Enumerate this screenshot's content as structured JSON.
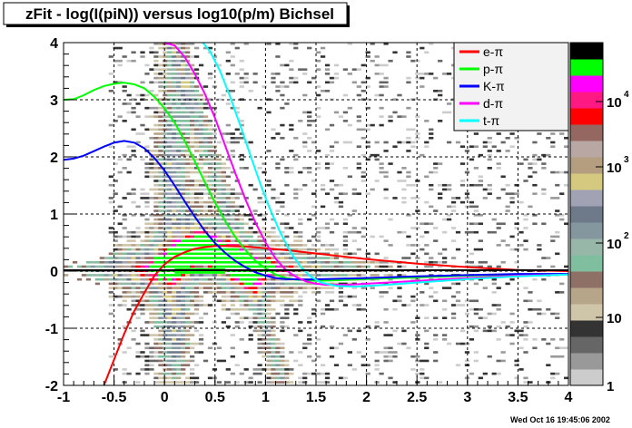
{
  "chart_data": {
    "type": "heatmap",
    "title": "zFit - log(I(piN)) versus log10(p/m) Bichsel",
    "xlim": [
      -1,
      4
    ],
    "ylim": [
      -2,
      4
    ],
    "x_ticks": [
      "-1",
      "-0.5",
      "0",
      "0.5",
      "1",
      "1.5",
      "2",
      "2.5",
      "3",
      "3.5",
      "4"
    ],
    "y_ticks": [
      "-2",
      "-1",
      "0",
      "1",
      "2",
      "3",
      "4"
    ],
    "grid": true,
    "legend_position": "top-right",
    "palette_labels": [
      {
        "base": "1",
        "exp": ""
      },
      {
        "base": "10",
        "exp": ""
      },
      {
        "base": "10",
        "exp": "2"
      },
      {
        "base": "10",
        "exp": "3"
      },
      {
        "base": "10",
        "exp": "4"
      }
    ],
    "palette_colors": [
      "#cccccc",
      "#999999",
      "#666666",
      "#333333",
      "#cfc6aa",
      "#b7a58a",
      "#8f7066",
      "#7fbf9f",
      "#97b8a8",
      "#84969e",
      "#6e7a8a",
      "#a1a3b4",
      "#d4c97f",
      "#b49e7f",
      "#b9a7a4",
      "#946760",
      "#ff0000",
      "#ff1a83",
      "#ff00ff",
      "#00ff00",
      "#000000"
    ],
    "series": [
      {
        "name": "e-π",
        "color": "#ff0000",
        "x": [
          -0.6,
          -0.5,
          -0.4,
          -0.3,
          -0.2,
          -0.1,
          0.0,
          0.1,
          0.2,
          0.3,
          0.4,
          0.5,
          0.6,
          0.8,
          1.0,
          1.2,
          1.5,
          2.0,
          2.5,
          3.0,
          3.5,
          4.0
        ],
        "y": [
          -2.0,
          -1.55,
          -1.1,
          -0.7,
          -0.38,
          -0.08,
          0.12,
          0.25,
          0.33,
          0.39,
          0.42,
          0.44,
          0.44,
          0.43,
          0.4,
          0.37,
          0.31,
          0.21,
          0.13,
          0.07,
          0.02,
          0.0
        ]
      },
      {
        "name": "p-π",
        "color": "#00ff00",
        "x": [
          -1.0,
          -0.9,
          -0.8,
          -0.7,
          -0.6,
          -0.5,
          -0.4,
          -0.3,
          -0.2,
          -0.1,
          0.0,
          0.1,
          0.2,
          0.3,
          0.4,
          0.5,
          0.6,
          0.7,
          0.8,
          0.9,
          1.0,
          1.1,
          1.2,
          1.3,
          1.5,
          1.7,
          2.0,
          2.5,
          3.0,
          3.5,
          4.0
        ],
        "y": [
          3.0,
          3.01,
          3.08,
          3.17,
          3.24,
          3.28,
          3.3,
          3.27,
          3.2,
          3.05,
          2.85,
          2.6,
          2.28,
          1.92,
          1.55,
          1.2,
          0.88,
          0.6,
          0.37,
          0.18,
          0.05,
          -0.06,
          -0.12,
          -0.15,
          -0.17,
          -0.16,
          -0.14,
          -0.11,
          -0.08,
          -0.06,
          -0.05
        ]
      },
      {
        "name": "K-π",
        "color": "#0000ff",
        "x": [
          -1.0,
          -0.9,
          -0.8,
          -0.7,
          -0.6,
          -0.5,
          -0.4,
          -0.3,
          -0.2,
          -0.1,
          0.0,
          0.1,
          0.2,
          0.3,
          0.4,
          0.5,
          0.6,
          0.7,
          0.8,
          0.9,
          1.0,
          1.1,
          1.2,
          1.4,
          1.6,
          2.0,
          2.5,
          3.0,
          3.5,
          4.0
        ],
        "y": [
          1.95,
          1.97,
          2.02,
          2.1,
          2.18,
          2.25,
          2.28,
          2.25,
          2.15,
          1.98,
          1.76,
          1.5,
          1.22,
          0.95,
          0.7,
          0.49,
          0.32,
          0.18,
          0.07,
          -0.02,
          -0.08,
          -0.12,
          -0.14,
          -0.15,
          -0.14,
          -0.12,
          -0.09,
          -0.07,
          -0.05,
          -0.05
        ]
      },
      {
        "name": "d-π",
        "color": "#ff00ff",
        "x": [
          0.0,
          0.1,
          0.2,
          0.3,
          0.4,
          0.5,
          0.6,
          0.7,
          0.8,
          0.9,
          1.0,
          1.1,
          1.2,
          1.3,
          1.4,
          1.5,
          1.6,
          1.8,
          2.0,
          2.5,
          3.0,
          3.5,
          4.0
        ],
        "y": [
          4.0,
          3.95,
          3.75,
          3.45,
          3.1,
          2.68,
          2.2,
          1.72,
          1.26,
          0.85,
          0.5,
          0.22,
          0.02,
          -0.1,
          -0.18,
          -0.22,
          -0.24,
          -0.24,
          -0.22,
          -0.17,
          -0.12,
          -0.08,
          -0.06
        ]
      },
      {
        "name": "t-π",
        "color": "#00ffff",
        "x": [
          0.38,
          0.45,
          0.55,
          0.65,
          0.75,
          0.85,
          0.95,
          1.05,
          1.15,
          1.25,
          1.35,
          1.45,
          1.55,
          1.7,
          1.9,
          2.2,
          2.5,
          3.0,
          3.5,
          4.0
        ],
        "y": [
          4.0,
          3.85,
          3.5,
          3.05,
          2.55,
          2.03,
          1.52,
          1.06,
          0.66,
          0.33,
          0.07,
          -0.1,
          -0.2,
          -0.26,
          -0.27,
          -0.24,
          -0.2,
          -0.14,
          -0.09,
          -0.06
        ]
      }
    ]
  },
  "footer": {
    "timestamp": "Wed Oct 16 19:45:06 2002"
  }
}
